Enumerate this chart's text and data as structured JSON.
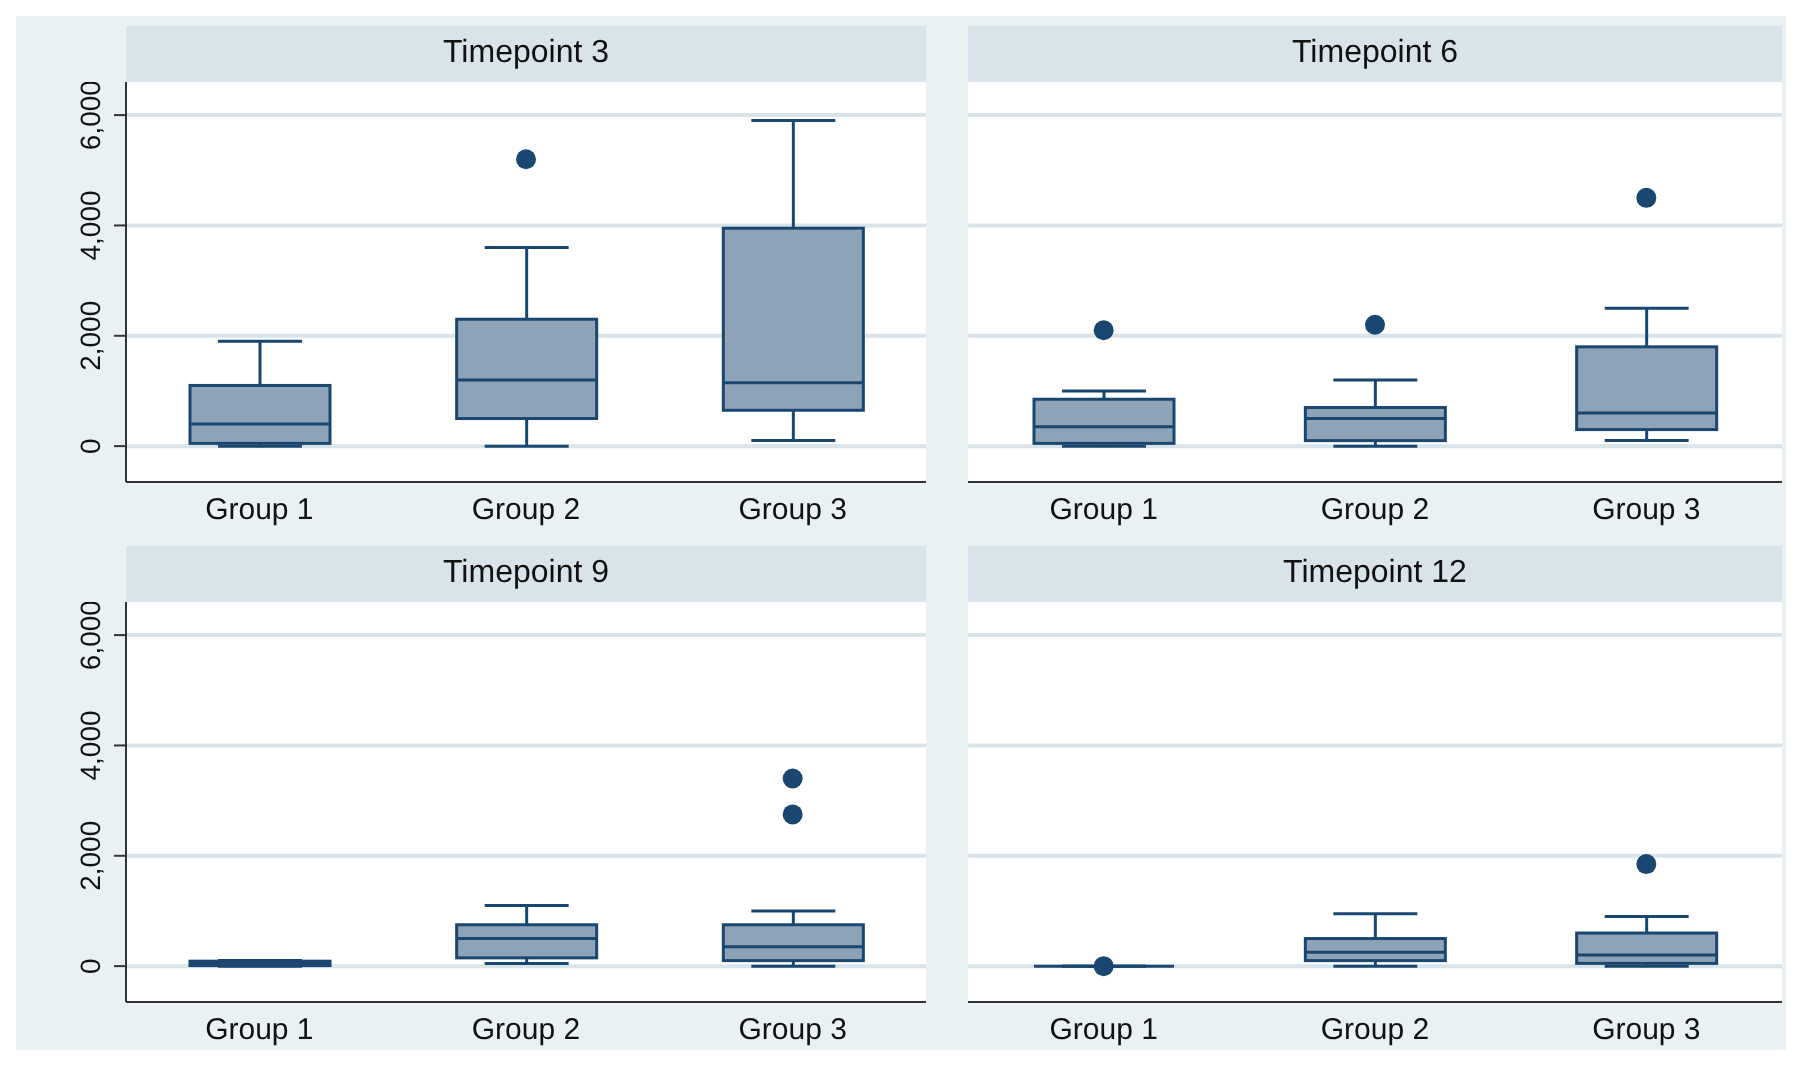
{
  "chart_data": [
    {
      "type": "box",
      "title": "Timepoint 3",
      "categories": [
        "Group 1",
        "Group 2",
        "Group 3"
      ],
      "ylim": [
        -650,
        6600
      ],
      "yticks": [
        0,
        {
          "value": 2000,
          "label": "2,000"
        },
        {
          "value": 4000,
          "label": "4,000"
        },
        {
          "value": 6000,
          "label": "6,000"
        }
      ],
      "grid": "y",
      "series": [
        {
          "color": "#1a476f",
          "boxes": [
            {
              "low": 0,
              "q1": 50,
              "median": 400,
              "q3": 1100,
              "high": 1900
            },
            {
              "low": 0,
              "q1": 500,
              "median": 1200,
              "q3": 2300,
              "high": 3600,
              "outliers": [
                5200
              ]
            },
            {
              "low": 100,
              "q1": 650,
              "median": 1150,
              "q3": 3950,
              "high": 5900
            }
          ]
        }
      ]
    },
    {
      "type": "box",
      "title": "Timepoint 6",
      "categories": [
        "Group 1",
        "Group 2",
        "Group 3"
      ],
      "ylim": [
        -650,
        6600
      ],
      "yticks": [
        0,
        2000,
        4000,
        6000
      ],
      "grid": "y",
      "tick_labels": "x",
      "series": [
        {
          "color": "#1a476f",
          "boxes": [
            {
              "low": 0,
              "q1": 50,
              "median": 350,
              "q3": 850,
              "high": 1000,
              "outliers": [
                2100
              ]
            },
            {
              "low": 0,
              "q1": 100,
              "median": 500,
              "q3": 700,
              "high": 1200,
              "outliers": [
                2200
              ]
            },
            {
              "low": 100,
              "q1": 300,
              "median": 600,
              "q3": 1800,
              "high": 2500,
              "outliers": [
                4500
              ]
            }
          ]
        }
      ]
    },
    {
      "type": "box",
      "title": "Timepoint 9",
      "categories": [
        "Group 1",
        "Group 2",
        "Group 3"
      ],
      "ylim": [
        -650,
        6600
      ],
      "yticks": [
        0,
        {
          "value": 2000,
          "label": "2,000"
        },
        {
          "value": 4000,
          "label": "4,000"
        },
        {
          "value": 6000,
          "label": "6,000"
        }
      ],
      "grid": "y",
      "series": [
        {
          "color": "#1a476f",
          "boxes": [
            {
              "low": 0,
              "q1": 10,
              "median": 50,
              "q3": 90,
              "high": 100
            },
            {
              "low": 50,
              "q1": 150,
              "median": 500,
              "q3": 750,
              "high": 1100
            },
            {
              "low": 0,
              "q1": 100,
              "median": 350,
              "q3": 750,
              "high": 1000,
              "outliers": [
                3400,
                2750
              ]
            }
          ]
        }
      ]
    },
    {
      "type": "box",
      "title": "Timepoint 12",
      "categories": [
        "Group 1",
        "Group 2",
        "Group 3"
      ],
      "ylim": [
        -650,
        6600
      ],
      "yticks": [
        0,
        2000,
        4000,
        6000
      ],
      "grid": "y",
      "tick_labels": "x",
      "series": [
        {
          "color": "#1a476f",
          "boxes": [
            {
              "low": 0,
              "q1": 0,
              "median": 0,
              "q3": 0,
              "high": 0,
              "outliers": [
                0
              ]
            },
            {
              "low": 0,
              "q1": 100,
              "median": 250,
              "q3": 500,
              "high": 950
            },
            {
              "low": 0,
              "q1": 50,
              "median": 200,
              "q3": 600,
              "high": 900,
              "outliers": [
                1850
              ]
            }
          ]
        }
      ]
    }
  ]
}
